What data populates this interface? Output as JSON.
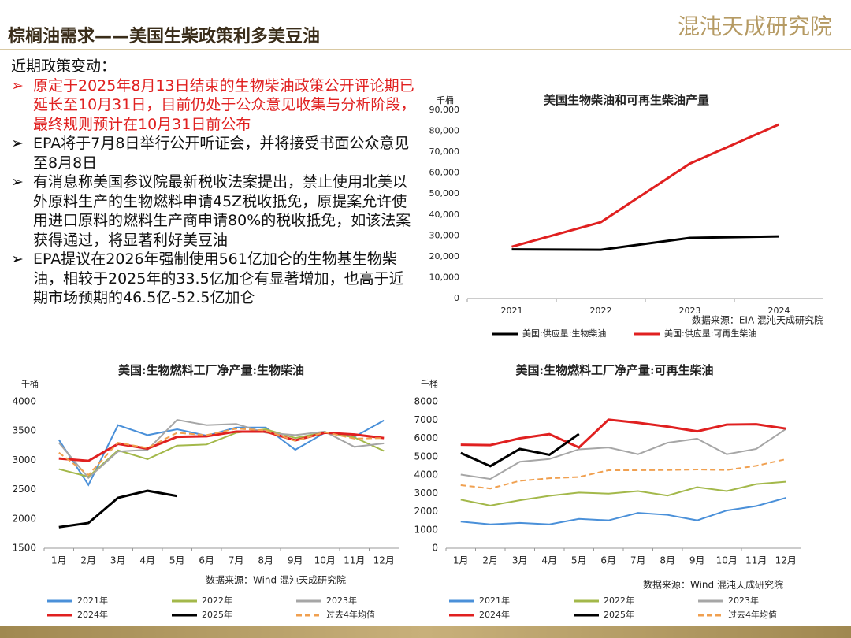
{
  "header": {
    "title": "棕榈油需求——美国生柴政策利多美豆油",
    "logo": "混沌天成研究院"
  },
  "policy": {
    "intro": "近期政策变动：",
    "bullets": [
      "原定于2025年8月13日结束的生物柴油政策公开评论期已延长至10月31日，目前仍处于公众意见收集与分析阶段，最终规则预计在10月31日前公布",
      "EPA将于7月8日举行公开听证会，并将接受书面公众意见至8月8日",
      "有消息称美国参议院最新税收法案提出，禁止使用北美以外原料生产的生物燃料申请45Z税收抵免，原提案允许使用进口原料的燃料生产商申请80%的税收抵免，如该法案获得通过，将显著利好美豆油",
      "EPA提议在2026年强制使用561亿加仑的生物基生物柴油，相较于2025年的33.5亿加仑有显著增加，也高于近期市场预期的46.5亿-52.5亿加仑"
    ]
  },
  "chart_data": [
    {
      "type": "line",
      "title": "美国生物柴油和可再生柴油产量",
      "y_label": "千桶",
      "source": "数据来源：EIA  混沌天成研究院",
      "categories": [
        "2021",
        "2022",
        "2023",
        "2024"
      ],
      "ylim": [
        0,
        90000
      ],
      "yticks": [
        0,
        {
          "value": 10000,
          "label": "10,000"
        },
        {
          "value": 20000,
          "label": "20,000"
        },
        {
          "value": 30000,
          "label": "30,000"
        },
        {
          "value": 40000,
          "label": "40,000"
        },
        {
          "value": 50000,
          "label": "50,000"
        },
        {
          "value": 60000,
          "label": "60,000"
        },
        {
          "value": 70000,
          "label": "70,000"
        },
        {
          "value": 80000,
          "label": "80,000"
        },
        {
          "value": 90000,
          "label": "90,000"
        }
      ],
      "grid": false,
      "series": [
        {
          "name": "美国:供应量:生物柴油",
          "color": "#000000",
          "values": [
            23500,
            23300,
            29000,
            29700
          ]
        },
        {
          "name": "美国:供应量:可再生柴油",
          "color": "#e02020",
          "values": [
            24800,
            36500,
            64500,
            83200
          ]
        }
      ]
    },
    {
      "type": "line",
      "title": "美国:生物燃料工厂净产量:生物柴油",
      "y_label": "千桶",
      "source": "数据来源：Wind  混沌天成研究院",
      "categories": [
        "1月",
        "2月",
        "3月",
        "4月",
        "5月",
        "6月",
        "7月",
        "8月",
        "9月",
        "10月",
        "11月",
        "12月"
      ],
      "ylim": [
        1500,
        4000
      ],
      "yticks": [
        1500,
        2000,
        2500,
        3000,
        3500,
        4000
      ],
      "grid": false,
      "series": [
        {
          "name": "2021年",
          "color": "#4a90d9",
          "values": [
            3350,
            2580,
            3600,
            3430,
            3530,
            3420,
            3560,
            3560,
            3180,
            3470,
            3400,
            3680
          ]
        },
        {
          "name": "2022年",
          "color": "#a3b84a",
          "values": [
            2850,
            2720,
            3170,
            3020,
            3250,
            3270,
            3470,
            3530,
            3380,
            3480,
            3390,
            3160
          ]
        },
        {
          "name": "2023年",
          "color": "#a6a6a6",
          "values": [
            3300,
            2700,
            3150,
            3180,
            3690,
            3600,
            3620,
            3470,
            3430,
            3490,
            3230,
            3290
          ]
        },
        {
          "name": "2024年",
          "color": "#e02020",
          "values": [
            3030,
            2990,
            3280,
            3200,
            3400,
            3410,
            3490,
            3490,
            3340,
            3470,
            3440,
            3380
          ]
        },
        {
          "name": "2025年",
          "color": "#000000",
          "values": [
            1860,
            1930,
            2360,
            2480,
            2390,
            null,
            null,
            null,
            null,
            null,
            null,
            null
          ]
        },
        {
          "name": "过去4年均值",
          "color": "#f0a050",
          "dashed": true,
          "values": [
            3130,
            2750,
            3300,
            3210,
            3470,
            3430,
            3540,
            3510,
            3330,
            3480,
            3370,
            3380
          ]
        }
      ]
    },
    {
      "type": "line",
      "title": "美国:生物燃料工厂净产量:可再生柴油",
      "y_label": "千桶",
      "source": "数据来源：Wind  混沌天成研究院",
      "categories": [
        "1月",
        "2月",
        "3月",
        "4月",
        "5月",
        "6月",
        "7月",
        "8月",
        "9月",
        "10月",
        "11月",
        "12月"
      ],
      "ylim": [
        0,
        8000
      ],
      "yticks": [
        0,
        1000,
        2000,
        3000,
        4000,
        5000,
        6000,
        7000,
        8000
      ],
      "grid": false,
      "series": [
        {
          "name": "2021年",
          "color": "#4a90d9",
          "values": [
            1450,
            1300,
            1380,
            1300,
            1600,
            1520,
            1930,
            1820,
            1520,
            2060,
            2300,
            2750
          ]
        },
        {
          "name": "2022年",
          "color": "#a3b84a",
          "values": [
            2650,
            2330,
            2620,
            2860,
            3040,
            2980,
            3120,
            2870,
            3330,
            3120,
            3500,
            3630
          ]
        },
        {
          "name": "2023年",
          "color": "#a6a6a6",
          "values": [
            4020,
            3780,
            4720,
            4870,
            5400,
            5500,
            5130,
            5760,
            5980,
            5130,
            5420,
            6510
          ]
        },
        {
          "name": "2024年",
          "color": "#e02020",
          "values": [
            5650,
            5630,
            6000,
            6230,
            5500,
            7020,
            6850,
            6640,
            6380,
            6750,
            6770,
            6530
          ]
        },
        {
          "name": "2025年",
          "color": "#000000",
          "values": [
            5200,
            4480,
            5420,
            5100,
            6240,
            null,
            null,
            null,
            null,
            null,
            null,
            null
          ]
        },
        {
          "name": "过去4年均值",
          "color": "#f0a050",
          "dashed": true,
          "values": [
            3440,
            3260,
            3680,
            3820,
            3890,
            4260,
            4260,
            4270,
            4300,
            4270,
            4500,
            4860
          ]
        }
      ]
    }
  ]
}
